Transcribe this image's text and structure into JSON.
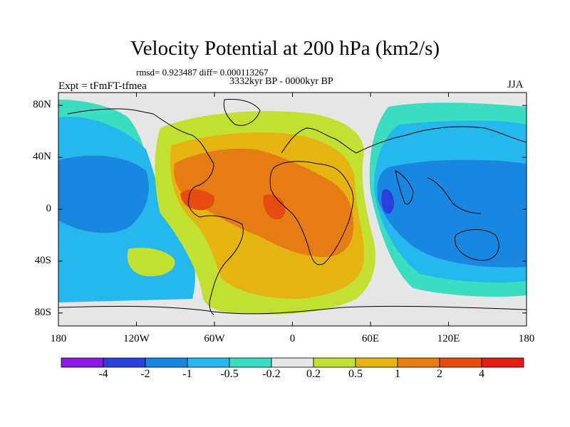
{
  "title": "Velocity Potential at 200 hPa (km2/s)",
  "stats": "rmsd= 0.923487  diff= 0.000113267",
  "period": "3332kyr BP - 0000kyr BP",
  "experiment": "Expt = tFmFT-tfmea",
  "season": "JJA",
  "y_axis": {
    "labels": [
      "80N",
      "40N",
      "0",
      "40S",
      "80S"
    ],
    "values": [
      80,
      40,
      0,
      -40,
      -80
    ]
  },
  "x_axis": {
    "labels": [
      "180",
      "120W",
      "60W",
      "0",
      "60E",
      "120E",
      "180"
    ],
    "values": [
      -180,
      -120,
      -60,
      0,
      60,
      120,
      180
    ]
  },
  "colorbar": {
    "labels": [
      "-4",
      "-2",
      "-1",
      "-0.5",
      "-0.2",
      "0.2",
      "0.5",
      "1",
      "2",
      "4"
    ],
    "levels": [
      -4,
      -2,
      -1,
      -0.5,
      -0.2,
      0.2,
      0.5,
      1,
      2,
      4
    ],
    "colors": [
      "#8a1ae6",
      "#2a3fdc",
      "#1a86e0",
      "#26b8ec",
      "#3cdcc0",
      "#e6e6e6",
      "#c2e032",
      "#e6b412",
      "#e67c16",
      "#e64b10",
      "#e61a14"
    ]
  },
  "field_colors": {
    "neutral": "#e6e6e6",
    "weak_pos": "#c2e032",
    "pos_05": "#e6b412",
    "pos_1": "#e67c16",
    "pos_2": "#e64b10",
    "weak_neg": "#3cdcc0",
    "neg_05": "#26b8ec",
    "neg_1": "#1a86e0",
    "neg_2": "#2a3fdc"
  }
}
